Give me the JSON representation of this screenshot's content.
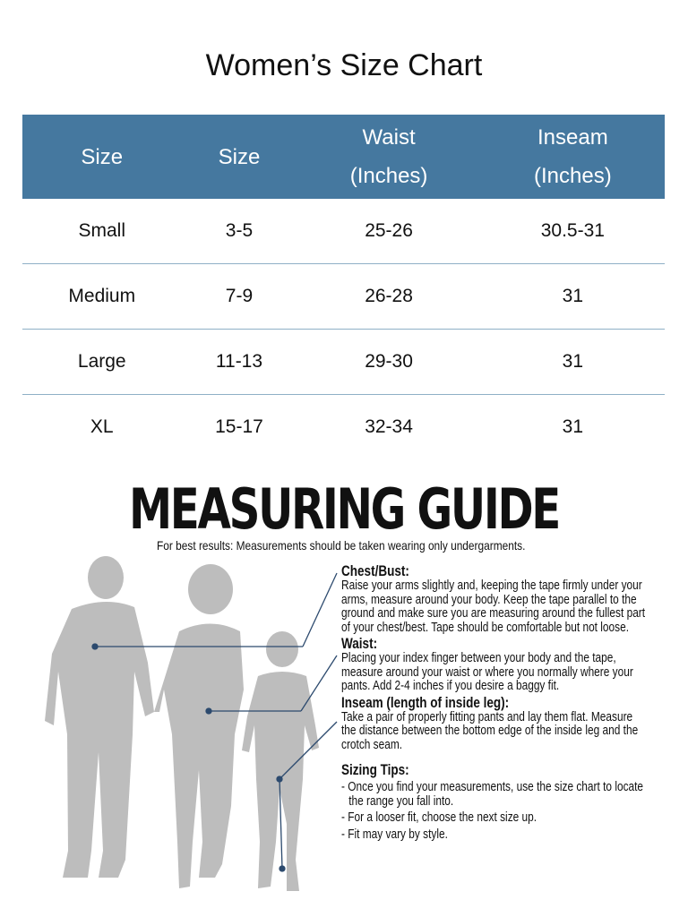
{
  "title": "Women’s Size Chart",
  "table": {
    "headers": [
      [
        "Size"
      ],
      [
        "Size"
      ],
      [
        "Waist",
        "(Inches)"
      ],
      [
        "Inseam",
        "(Inches)"
      ]
    ],
    "rows": [
      [
        "Small",
        "3-5",
        "25-26",
        "30.5-31"
      ],
      [
        "Medium",
        "7-9",
        "26-28",
        "31"
      ],
      [
        "Large",
        "11-13",
        "29-30",
        "31"
      ],
      [
        "XL",
        "15-17",
        "32-34",
        "31"
      ]
    ]
  },
  "guide": {
    "title": "MEASURING GUIDE",
    "subtitle": "For best results: Measurements should be taken wearing only undergarments.",
    "sections": [
      {
        "heading": "Chest/Bust:",
        "body": "Raise your arms slightly and, keeping the tape firmly under your arms, measure around your body. Keep the tape parallel to the ground and make sure you are measuring around the fullest part of your chest/best. Tape should be comfortable but not loose."
      },
      {
        "heading": "Waist:",
        "body": "Placing your index finger between your body and the tape, measure around your waist or where you normally where your pants. Add 2-4 inches if you desire a baggy fit."
      },
      {
        "heading": "Inseam (length of inside leg):",
        "body": "Take a pair of properly fitting pants and lay them flat. Measure the distance between the bottom edge of the inside leg and the crotch seam."
      }
    ],
    "tips_heading": "Sizing Tips:",
    "tips": [
      "- Once you find your measurements, use the size chart to locate the range you fall into.",
      "- For a looser fit, choose the next size up.",
      "- Fit may vary by style."
    ]
  },
  "colors": {
    "header": "#45789f",
    "silhouette": "#bdbdbd",
    "pointer": "#2c4a6e"
  }
}
